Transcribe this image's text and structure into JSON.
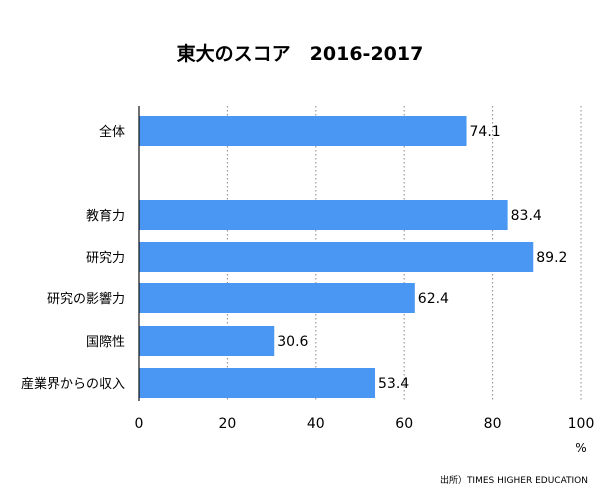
{
  "chart_data": {
    "type": "bar",
    "orientation": "horizontal",
    "title": "東大のスコア　2016-2017",
    "categories": [
      "全体",
      "教育力",
      "研究力",
      "研究の影響力",
      "国際性",
      "産業界からの収入"
    ],
    "values": [
      74.1,
      83.4,
      89.2,
      62.4,
      30.6,
      53.4
    ],
    "value_labels": [
      "74.1",
      "83.4",
      "89.2",
      "62.4",
      "30.6",
      "53.4"
    ],
    "xlim": [
      0,
      100
    ],
    "xticks": [
      0,
      20,
      40,
      60,
      80,
      100
    ],
    "xtick_labels": [
      "0",
      "20",
      "40",
      "60",
      "80",
      "100"
    ],
    "x_unit": "%",
    "grid": "vertical-dotted",
    "bar_color": "#4a97f3",
    "source": "出所）TIMES HIGHER EDUCATION"
  }
}
